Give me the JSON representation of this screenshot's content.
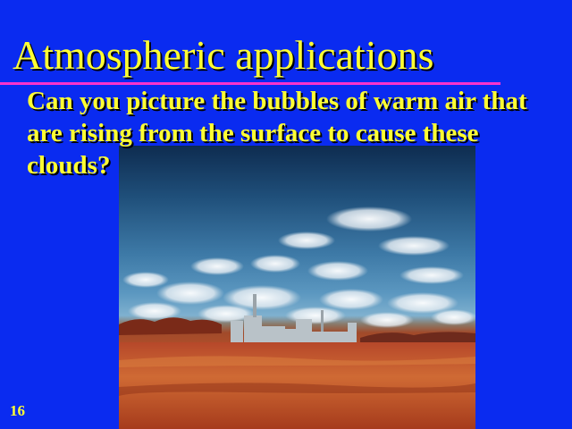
{
  "slide": {
    "title": "Atmospheric applications",
    "body": "Can you picture the bubbles of warm air that are rising from the surface to cause these clouds?",
    "number": "16",
    "colors": {
      "background": "#0a2bf0",
      "text": "#ffff33",
      "title_rule": "#ff33cc"
    },
    "image": {
      "icon": "landscape-photo-icon"
    }
  }
}
